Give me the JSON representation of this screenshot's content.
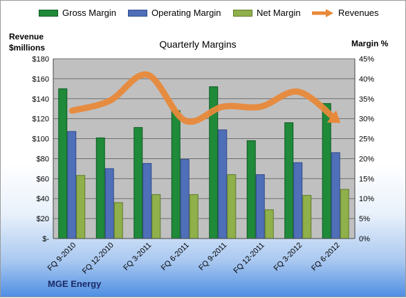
{
  "legend": {
    "gross": "Gross Margin",
    "operating": "Operating Margin",
    "net": "Net Margin",
    "revenues": "Revenues"
  },
  "left_axis_title": [
    "Revenue",
    "$millions"
  ],
  "right_axis_title": "Margin %",
  "chart_title": "Quarterly Margins",
  "company": "MGE Energy",
  "colors": {
    "gross": "#1f8a3a",
    "operating": "#4f6fb8",
    "net": "#8fb04a",
    "revenues": "#e8893a",
    "plot_bg": "#c0c0c0"
  },
  "chart_data": {
    "type": "bar",
    "categories": [
      "FQ 9-2010",
      "FQ 12-2010",
      "FQ 3-2011",
      "FQ 6-2011",
      "FQ 9-2011",
      "FQ 12-2011",
      "FQ 3-2012",
      "FQ 6-2012"
    ],
    "series": [
      {
        "name": "Gross Margin",
        "axis": "right",
        "values": [
          37.5,
          25.2,
          27.8,
          32.0,
          38.0,
          24.5,
          29.0,
          33.8
        ]
      },
      {
        "name": "Operating Margin",
        "axis": "right",
        "values": [
          26.8,
          17.5,
          18.8,
          19.8,
          27.2,
          16.0,
          19.0,
          21.5
        ]
      },
      {
        "name": "Net Margin",
        "axis": "right",
        "values": [
          15.8,
          9.0,
          11.0,
          11.0,
          16.0,
          7.2,
          10.8,
          12.3
        ]
      },
      {
        "name": "Revenues",
        "axis": "left",
        "type": "line",
        "values": [
          128,
          138,
          164,
          118,
          132,
          132,
          147,
          119
        ]
      }
    ],
    "left_ylim": [
      0,
      180
    ],
    "left_ticks": [
      "$-",
      "$20",
      "$40",
      "$60",
      "$80",
      "$100",
      "$120",
      "$140",
      "$160",
      "$180"
    ],
    "right_ylim": [
      0,
      45
    ],
    "right_ticks": [
      "0%",
      "5%",
      "10%",
      "15%",
      "20%",
      "25%",
      "30%",
      "35%",
      "40%",
      "45%"
    ],
    "grid": true,
    "legend_position": "top"
  }
}
